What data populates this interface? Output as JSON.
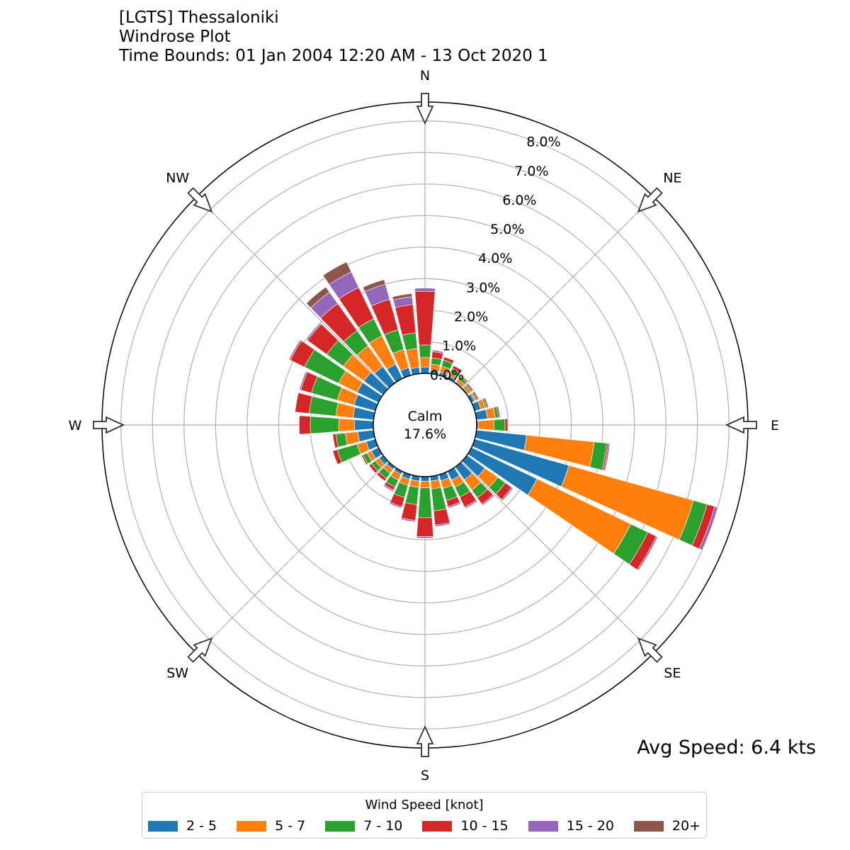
{
  "chart_data": {
    "type": "windrose",
    "title_lines": [
      "[LGTS] Thessaloniki",
      "Windrose Plot",
      "Time Bounds: 01 Jan 2004 12:20 AM - 13 Oct 2020 1"
    ],
    "calm": {
      "label": "Calm",
      "value": "17.6%"
    },
    "avg_speed_label": "Avg Speed: 6.4 kts",
    "radial_ticks": [
      "0.0%",
      "1.0%",
      "2.0%",
      "3.0%",
      "4.0%",
      "5.0%",
      "6.0%",
      "7.0%",
      "8.0%"
    ],
    "radial_max": 8.6,
    "compass": [
      "N",
      "NE",
      "E",
      "SE",
      "S",
      "SW",
      "W",
      "NW"
    ],
    "legend": {
      "title": "Wind Speed [knot]",
      "bins": [
        {
          "label": "2 - 5",
          "color": "#1f77b4"
        },
        {
          "label": "5 - 7",
          "color": "#ff7f0e"
        },
        {
          "label": "7 - 10",
          "color": "#2ca02c"
        },
        {
          "label": "10 - 15",
          "color": "#d62728"
        },
        {
          "label": "15 - 20",
          "color": "#9467bd"
        },
        {
          "label": "20+",
          "color": "#8c564b"
        }
      ]
    },
    "directions_deg": [
      0,
      10,
      20,
      30,
      40,
      50,
      60,
      70,
      80,
      90,
      100,
      110,
      120,
      130,
      140,
      150,
      160,
      170,
      180,
      190,
      200,
      210,
      220,
      230,
      240,
      250,
      260,
      270,
      280,
      290,
      300,
      310,
      320,
      330,
      340,
      350
    ],
    "cumulative": [
      [
        0.2,
        0.5,
        0.9,
        2.6,
        2.7,
        2.7
      ],
      [
        0.1,
        0.3,
        0.5,
        0.7,
        0.75,
        0.75
      ],
      [
        0.1,
        0.3,
        0.5,
        0.6,
        0.6,
        0.6
      ],
      [
        0.1,
        0.2,
        0.35,
        0.45,
        0.45,
        0.45
      ],
      [
        0.05,
        0.15,
        0.25,
        0.3,
        0.3,
        0.3
      ],
      [
        0.05,
        0.15,
        0.2,
        0.25,
        0.25,
        0.25
      ],
      [
        0.1,
        0.15,
        0.2,
        0.25,
        0.25,
        0.25
      ],
      [
        0.2,
        0.35,
        0.4,
        0.45,
        0.45,
        0.45
      ],
      [
        0.35,
        0.6,
        0.7,
        0.75,
        0.75,
        0.75
      ],
      [
        0.05,
        0.55,
        0.9,
        0.99,
        1.0,
        1.0
      ],
      [
        1.6,
        3.75,
        4.15,
        4.2,
        4.25,
        4.25
      ],
      [
        3.1,
        7.2,
        7.65,
        7.9,
        8.0,
        8.0
      ],
      [
        2.3,
        5.6,
        6.2,
        6.5,
        6.55,
        6.55
      ],
      [
        0.7,
        1.2,
        1.5,
        1.75,
        1.8,
        1.8
      ],
      [
        0.5,
        0.9,
        1.2,
        1.45,
        1.5,
        1.5
      ],
      [
        0.3,
        0.55,
        0.9,
        1.25,
        1.3,
        1.3
      ],
      [
        0.2,
        0.45,
        0.85,
        1.05,
        1.1,
        1.1
      ],
      [
        0.15,
        0.4,
        1.1,
        1.55,
        1.6,
        1.6
      ],
      [
        0.15,
        0.35,
        1.3,
        1.9,
        1.95,
        1.95
      ],
      [
        0.15,
        0.35,
        0.9,
        1.4,
        1.45,
        1.45
      ],
      [
        0.15,
        0.35,
        0.75,
        1.05,
        1.1,
        1.1
      ],
      [
        0.1,
        0.3,
        0.55,
        0.65,
        0.7,
        0.7
      ],
      [
        0.1,
        0.25,
        0.45,
        0.55,
        0.55,
        0.55
      ],
      [
        0.15,
        0.3,
        0.45,
        0.55,
        0.55,
        0.55
      ],
      [
        0.25,
        0.4,
        0.55,
        0.6,
        0.6,
        0.6
      ],
      [
        0.3,
        0.6,
        1.25,
        1.4,
        1.4,
        1.4
      ],
      [
        0.5,
        0.9,
        1.2,
        1.3,
        1.3,
        1.3
      ],
      [
        0.6,
        1.1,
        2.0,
        2.35,
        2.35,
        2.35
      ],
      [
        0.65,
        1.2,
        2.05,
        2.5,
        2.5,
        2.5
      ],
      [
        0.7,
        1.25,
        2.1,
        2.45,
        2.5,
        2.5
      ],
      [
        0.75,
        1.4,
        2.6,
        3.1,
        3.15,
        3.15
      ],
      [
        0.75,
        1.55,
        2.2,
        2.95,
        3.0,
        3.0
      ],
      [
        0.65,
        1.45,
        2.05,
        3.1,
        3.55,
        3.75
      ],
      [
        0.5,
        1.5,
        2.1,
        3.2,
        3.75,
        4.1
      ],
      [
        0.25,
        0.85,
        1.5,
        2.5,
        3.0,
        3.15
      ],
      [
        0.2,
        0.8,
        1.3,
        2.2,
        2.45,
        2.55
      ]
    ]
  }
}
